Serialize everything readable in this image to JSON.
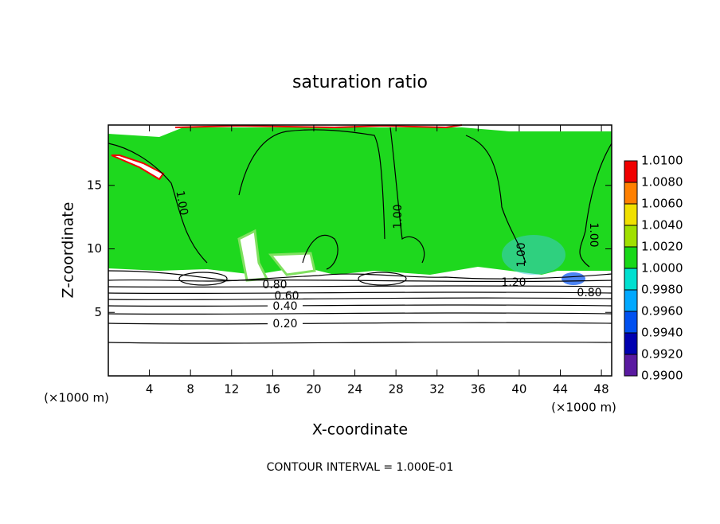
{
  "chart_data": {
    "type": "contour",
    "title": "saturation ratio",
    "x_label": "X-coordinate",
    "y_label": "Z-coordinate",
    "x_unit": "(×1000 m)",
    "xlim": [
      0,
      49
    ],
    "xticks": [
      4,
      8,
      12,
      16,
      20,
      24,
      28,
      32,
      36,
      40,
      44,
      48
    ],
    "ylim": [
      0,
      19.75
    ],
    "yticks": [
      5,
      10,
      15
    ],
    "colorbar": {
      "ticks": [
        {
          "value": 0.99,
          "label": "0.9900"
        },
        {
          "value": 0.992,
          "label": "0.9920"
        },
        {
          "value": 0.994,
          "label": "0.9940"
        },
        {
          "value": 0.996,
          "label": "0.9960"
        },
        {
          "value": 0.998,
          "label": "0.9980"
        },
        {
          "value": 1.0,
          "label": "1.0000"
        },
        {
          "value": 1.002,
          "label": "1.0020"
        },
        {
          "value": 1.004,
          "label": "1.0040"
        },
        {
          "value": 1.006,
          "label": "1.0060"
        },
        {
          "value": 1.008,
          "label": "1.0080"
        },
        {
          "value": 1.01,
          "label": "1.0100"
        }
      ],
      "colors": [
        "#5a1aa0",
        "#0000b0",
        "#0050f0",
        "#00a8ff",
        "#00e0d0",
        "#18d818",
        "#a0e000",
        "#f0e000",
        "#ff8000",
        "#f00000"
      ]
    },
    "contour_labels": [
      "1.00",
      "0.20",
      "0.40",
      "0.60",
      "0.80",
      "1.20"
    ],
    "footer": "CONTOUR INTERVAL = 1.000E-01"
  }
}
